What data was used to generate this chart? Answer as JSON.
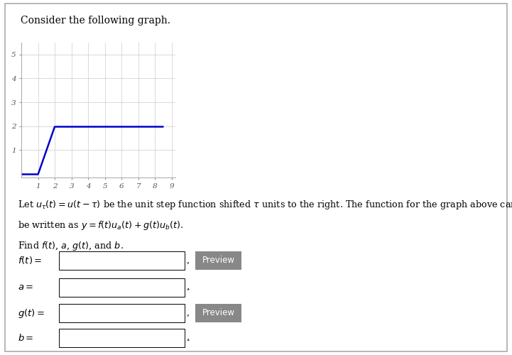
{
  "title": "Consider the following graph.",
  "graph_xlim": [
    0,
    9.2
  ],
  "graph_ylim": [
    -0.15,
    5.5
  ],
  "xticks": [
    1,
    2,
    3,
    4,
    5,
    6,
    7,
    8,
    9
  ],
  "yticks": [
    1,
    2,
    3,
    4,
    5
  ],
  "line_color": "#0000cc",
  "line_segments": [
    {
      "x": [
        0,
        1
      ],
      "y": [
        0,
        0
      ]
    },
    {
      "x": [
        1,
        2
      ],
      "y": [
        0,
        2
      ]
    },
    {
      "x": [
        2,
        8.5
      ],
      "y": [
        2,
        2
      ]
    }
  ],
  "preview_button_color": "#888888",
  "preview_button_text_color": "#ffffff",
  "background_color": "#ffffff",
  "plot_background": "#ffffff",
  "border_color": "#aaaaaa",
  "text_color": "#000000"
}
